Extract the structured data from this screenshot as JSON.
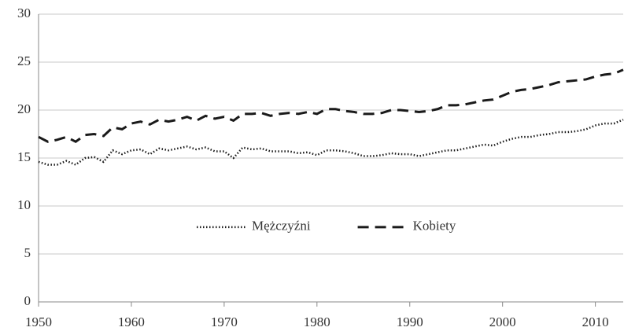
{
  "chart_data": {
    "type": "line",
    "x": [
      1950,
      1951,
      1952,
      1953,
      1954,
      1955,
      1956,
      1957,
      1958,
      1959,
      1960,
      1961,
      1962,
      1963,
      1964,
      1965,
      1966,
      1967,
      1968,
      1969,
      1970,
      1971,
      1972,
      1973,
      1974,
      1975,
      1976,
      1977,
      1978,
      1979,
      1980,
      1981,
      1982,
      1983,
      1984,
      1985,
      1986,
      1987,
      1988,
      1989,
      1990,
      1991,
      1992,
      1993,
      1994,
      1995,
      1996,
      1997,
      1998,
      1999,
      2000,
      2001,
      2002,
      2003,
      2004,
      2005,
      2006,
      2007,
      2008,
      2009,
      2010,
      2011,
      2012,
      2013
    ],
    "series": [
      {
        "name": "Mężczyźni",
        "color": "#1a1a1a",
        "dash": "dotted",
        "values": [
          14.6,
          14.3,
          14.3,
          14.7,
          14.3,
          15.0,
          15.1,
          14.6,
          15.8,
          15.4,
          15.8,
          15.9,
          15.4,
          16.0,
          15.8,
          16.0,
          16.2,
          15.9,
          16.1,
          15.7,
          15.7,
          15.0,
          16.1,
          15.9,
          16.0,
          15.7,
          15.7,
          15.7,
          15.5,
          15.6,
          15.3,
          15.8,
          15.8,
          15.7,
          15.5,
          15.2,
          15.2,
          15.3,
          15.5,
          15.4,
          15.4,
          15.2,
          15.4,
          15.6,
          15.8,
          15.8,
          16.0,
          16.2,
          16.4,
          16.3,
          16.7,
          17.0,
          17.2,
          17.2,
          17.4,
          17.5,
          17.7,
          17.7,
          17.8,
          18.0,
          18.4,
          18.6,
          18.6,
          19.0
        ]
      },
      {
        "name": "Kobiety",
        "color": "#1a1a1a",
        "dash": "dashed",
        "values": [
          17.2,
          16.7,
          16.9,
          17.2,
          16.7,
          17.4,
          17.5,
          17.3,
          18.2,
          18.0,
          18.6,
          18.8,
          18.5,
          19.0,
          18.8,
          19.0,
          19.3,
          18.9,
          19.4,
          19.1,
          19.3,
          18.9,
          19.6,
          19.6,
          19.7,
          19.4,
          19.6,
          19.7,
          19.6,
          19.8,
          19.6,
          20.1,
          20.1,
          19.9,
          19.8,
          19.6,
          19.6,
          19.7,
          20.0,
          20.0,
          19.9,
          19.8,
          19.9,
          20.1,
          20.5,
          20.5,
          20.6,
          20.8,
          21.0,
          21.1,
          21.5,
          21.9,
          22.1,
          22.2,
          22.4,
          22.6,
          22.9,
          23.0,
          23.1,
          23.2,
          23.5,
          23.7,
          23.8,
          24.2
        ]
      }
    ],
    "xlim": [
      1950,
      2013
    ],
    "xticks": [
      1950,
      1960,
      1970,
      1980,
      1990,
      2000,
      2010
    ],
    "ylim": [
      0,
      30
    ],
    "yticks": [
      0,
      5,
      10,
      15,
      20,
      25,
      30
    ],
    "grid": true,
    "legend": "center"
  }
}
